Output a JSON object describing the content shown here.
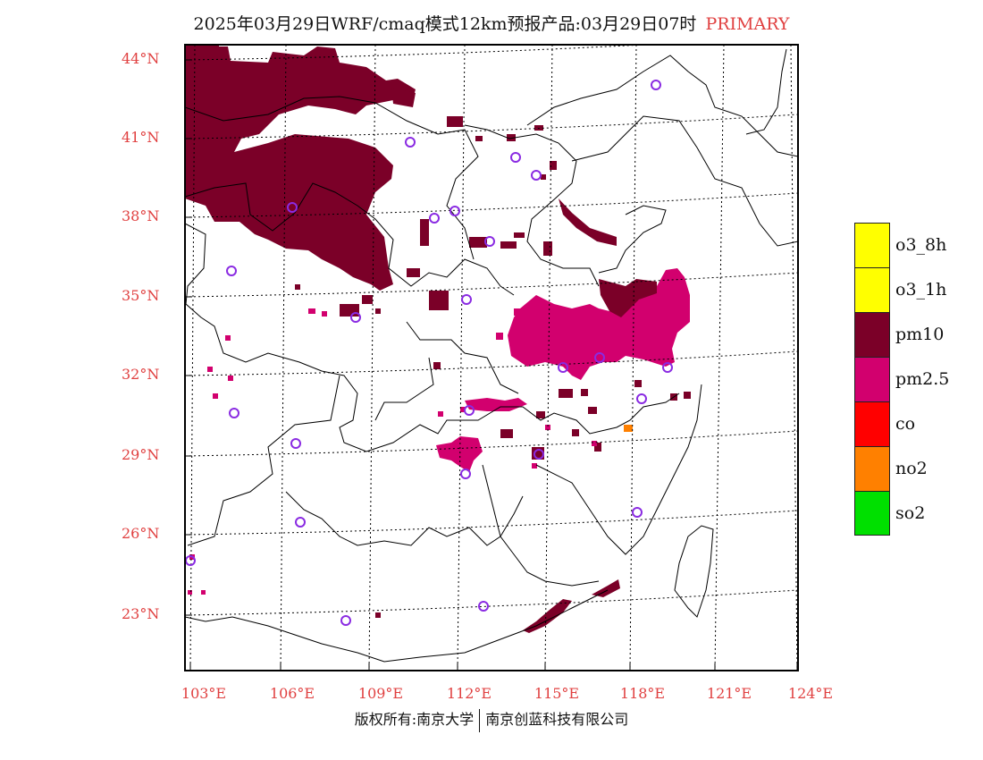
{
  "title": {
    "main": "2025年03月29日WRF/cmaq模式12km预报产品:03月29日07时",
    "tag": "PRIMARY"
  },
  "axes": {
    "lat_labels": [
      "44°N",
      "41°N",
      "38°N",
      "35°N",
      "32°N",
      "29°N",
      "26°N",
      "23°N"
    ],
    "lon_labels": [
      "103°E",
      "106°E",
      "109°E",
      "112°E",
      "115°E",
      "118°E",
      "121°E",
      "124°E"
    ]
  },
  "legend": {
    "items": [
      {
        "label": "o3_8h",
        "color": "#ffff00"
      },
      {
        "label": "o3_1h",
        "color": "#ffff00"
      },
      {
        "label": "pm10",
        "color": "#7b0028"
      },
      {
        "label": "pm2.5",
        "color": "#d2006e"
      },
      {
        "label": "co",
        "color": "#ff0000"
      },
      {
        "label": "no2",
        "color": "#ff8000"
      },
      {
        "label": "so2",
        "color": "#00e000"
      }
    ]
  },
  "colors": {
    "pm10": "#7b0028",
    "pm25": "#d2006e",
    "station": "#8a2be2",
    "grid": "#000000",
    "tick": "#e04040"
  },
  "footer": {
    "left": "版权所有:南京大学",
    "right": "南京创蓝科技有限公司"
  }
}
